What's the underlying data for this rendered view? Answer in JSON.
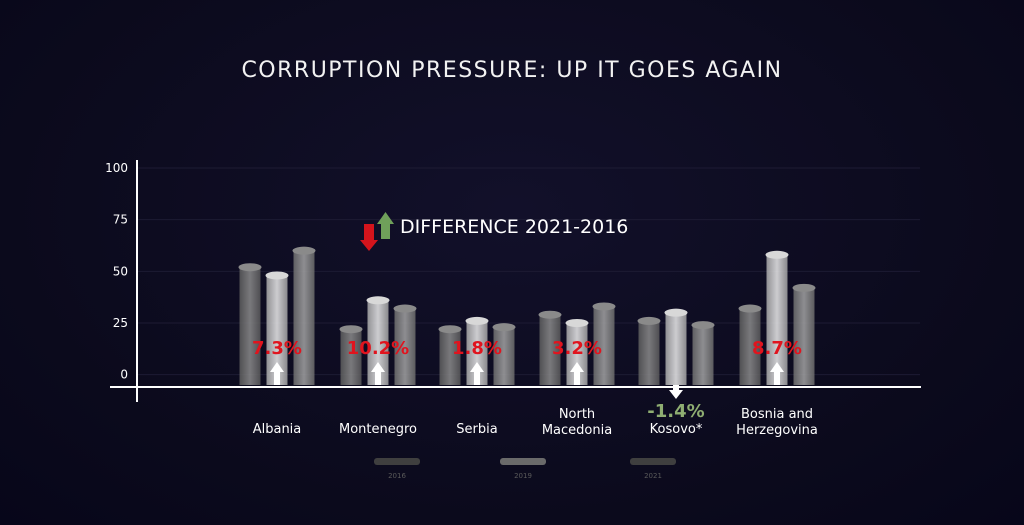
{
  "title": "CORRUPTION PRESSURE:  UP IT GOES AGAIN",
  "legend_note": "DIFFERENCE 2021-2016",
  "colors": {
    "background": "#0c0a1f",
    "bar_dark": "#7a7a7a",
    "bar_light": "#d6d6d6",
    "bar_mid": "#9a9a9a",
    "increase": "#e0141e",
    "decrease": "#8fae72",
    "arrow_up_green": "#6fa05a",
    "arrow_down_red": "#d4141c"
  },
  "chart_data": {
    "type": "bar",
    "title": "CORRUPTION PRESSURE:  UP IT GOES AGAIN",
    "categories": [
      "Albania",
      "Montenegro",
      "Serbia",
      "North Macedonia",
      "Kosovo*",
      "Bosnia and Herzegovina"
    ],
    "category_lines": [
      [
        "Albania"
      ],
      [
        "Montenegro"
      ],
      [
        "Serbia"
      ],
      [
        "North",
        "Macedonia"
      ],
      [
        "Kosovo*"
      ],
      [
        "Bosnia and",
        "Herzegovina"
      ]
    ],
    "series": [
      {
        "values": [
          52,
          22,
          22,
          29,
          26,
          32
        ]
      },
      {
        "values": [
          48,
          36,
          26,
          25,
          30,
          58
        ]
      },
      {
        "values": [
          60,
          32,
          23,
          33,
          24,
          42
        ]
      }
    ],
    "differences": [
      "7.3%",
      "10.2%",
      "1.8%",
      "3.2%",
      "-1.4%",
      "8.7%"
    ],
    "difference_direction": [
      "up",
      "up",
      "up",
      "up",
      "down",
      "up"
    ],
    "yticks": [
      100,
      75,
      50,
      25,
      0
    ],
    "ylim": [
      -5,
      100
    ],
    "legend_labels": [
      "2016",
      "2019",
      "2021"
    ],
    "grid": true
  }
}
